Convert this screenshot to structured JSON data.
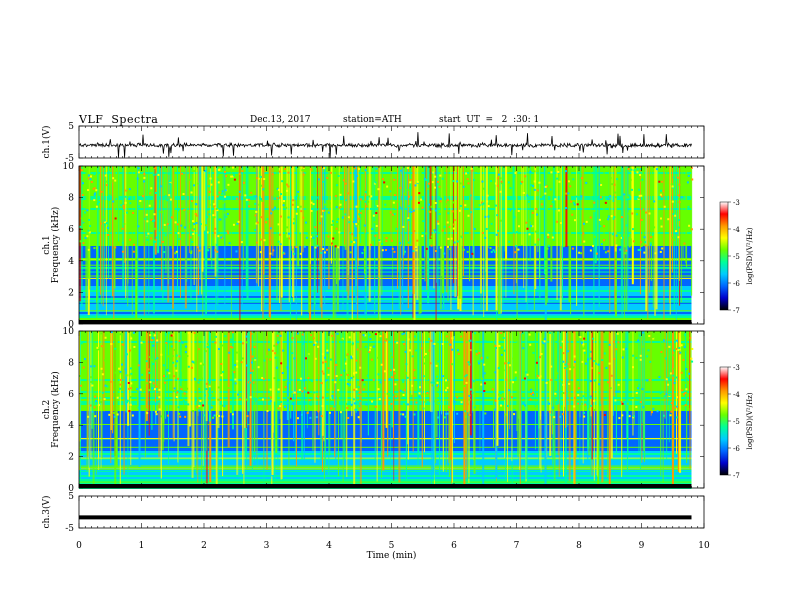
{
  "header": {
    "title": "VLF  Spectra",
    "date": "Dec.13, 2017",
    "station": "station=ATH",
    "start": "start  UT  =   2  :30: 1"
  },
  "chart_data": [
    {
      "type": "line",
      "ylabel": "ch.1(V)",
      "ytick_labels": [
        "5",
        "-5"
      ],
      "ylim": [
        -5,
        5
      ],
      "baseline": -1.0,
      "xlim": [
        0,
        10
      ],
      "data_extent_min": 9.8
    },
    {
      "type": "heatmap",
      "ylabel": "ch.1\nFrequency  (kHz)",
      "ytick_labels": [
        "10",
        "8",
        "6",
        "4",
        "2",
        "0"
      ],
      "ylim": [
        0,
        10
      ],
      "xlim": [
        0,
        10
      ],
      "data_extent_min": 9.8,
      "colorbar": {
        "label": "log(PSD)(V²/Hz)",
        "ticks": [
          "-3",
          "-4",
          "-5",
          "-6",
          "-7"
        ],
        "range": [
          -7,
          -3
        ]
      }
    },
    {
      "type": "heatmap",
      "ylabel": "ch.2\nFrequency  (kHz)",
      "ytick_labels": [
        "10",
        "8",
        "6",
        "4",
        "2",
        "0"
      ],
      "ylim": [
        0,
        10
      ],
      "xlim": [
        0,
        10
      ],
      "data_extent_min": 9.8,
      "colorbar": {
        "label": "log(PSD)(V²/Hz)",
        "ticks": [
          "-3",
          "-4",
          "-5",
          "-6",
          "-7"
        ],
        "range": [
          -7,
          -3
        ]
      }
    },
    {
      "type": "line",
      "ylabel": "ch.3(V)",
      "ytick_labels": [
        "5",
        "-5"
      ],
      "ylim": [
        -5,
        5
      ],
      "baseline": -1.7,
      "xlim": [
        0,
        10
      ],
      "data_extent_min": 9.8,
      "xlabel": "Time  (min)",
      "xtick_labels": [
        "0",
        "1",
        "2",
        "3",
        "4",
        "5",
        "6",
        "7",
        "8",
        "9",
        "10"
      ]
    }
  ],
  "colors": {
    "colormap": [
      "#000000",
      "#0000cc",
      "#0066ff",
      "#00ccff",
      "#00ff99",
      "#66ff00",
      "#ffff00",
      "#ff9900",
      "#ff0000",
      "#ffffff"
    ],
    "trace": "#000000"
  }
}
